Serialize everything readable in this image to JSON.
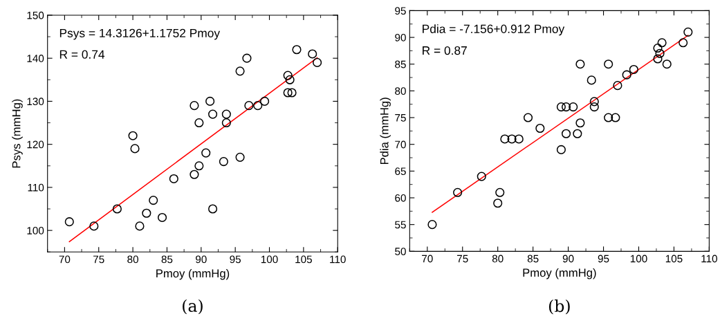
{
  "chart_data": [
    {
      "type": "scatter",
      "xlabel": "Pmoy (mmHg)",
      "ylabel": "Psys (mmHg)",
      "annotations": [
        "Psys = 14.3126+1.1752 Pmoy",
        "R = 0.74",
        "(a)"
      ],
      "xlim": [
        67.5,
        110
      ],
      "ylim": [
        95,
        150
      ],
      "xticks": [
        70,
        75,
        80,
        85,
        90,
        95,
        100,
        105,
        110
      ],
      "yticks": [
        100,
        110,
        120,
        130,
        140,
        150
      ],
      "grid": false,
      "legend": false,
      "marker": "circle",
      "series": [
        {
          "color": "#000000",
          "x": [
            70.7,
            74.3,
            77.7,
            80,
            80.3,
            81,
            82,
            83,
            84.3,
            86,
            89,
            89,
            89.7,
            89.7,
            90.7,
            91.3,
            91.7,
            91.7,
            93.3,
            93.7,
            93.7,
            95.7,
            95.7,
            96.7,
            97,
            98.3,
            99.3,
            102.7,
            102.7,
            103,
            103.3,
            104,
            106.3,
            107
          ],
          "values": [
            102,
            101,
            105,
            122,
            119,
            101,
            104,
            107,
            103,
            112,
            129,
            113,
            125,
            115,
            118,
            130,
            127,
            105,
            116,
            127,
            125,
            137,
            117,
            140,
            129,
            129,
            130,
            136,
            132,
            135,
            132,
            142,
            141,
            139
          ]
        },
        {
          "type": "line",
          "color": "#ff0000",
          "marker": "none",
          "x": [
            70.7,
            107
          ],
          "values": [
            97.4,
            140.1
          ]
        }
      ]
    },
    {
      "type": "scatter",
      "xlabel": "Pmoy (mmHg)",
      "ylabel": "Pdia (mmHg)",
      "annotations": [
        "Pdia = -7.156+0.912 Pmoy",
        "R = 0.87",
        "(b)"
      ],
      "xlim": [
        67.5,
        110
      ],
      "ylim": [
        50,
        95
      ],
      "xticks": [
        70,
        75,
        80,
        85,
        90,
        95,
        100,
        105,
        110
      ],
      "yticks": [
        50,
        55,
        60,
        65,
        70,
        75,
        80,
        85,
        90,
        95
      ],
      "grid": false,
      "legend": false,
      "marker": "circle",
      "series": [
        {
          "color": "#000000",
          "x": [
            70.7,
            74.3,
            77.7,
            80,
            80.3,
            81,
            82,
            83,
            84.3,
            86,
            89,
            89,
            89.7,
            89.7,
            90.7,
            91.3,
            91.7,
            91.7,
            93.3,
            93.7,
            93.7,
            95.7,
            95.7,
            96.7,
            97,
            98.3,
            99.3,
            102.7,
            102.7,
            103,
            103.3,
            104,
            106.3,
            107
          ],
          "values": [
            55,
            61,
            64,
            59,
            61,
            71,
            71,
            71,
            75,
            73,
            77,
            69,
            77,
            72,
            77,
            72,
            85,
            74,
            82,
            78,
            77,
            85,
            75,
            75,
            81,
            83,
            84,
            88,
            86,
            87,
            89,
            85,
            89,
            91
          ]
        },
        {
          "type": "line",
          "color": "#ff0000",
          "marker": "none",
          "x": [
            70.7,
            107
          ],
          "values": [
            57.3,
            90.4
          ]
        }
      ]
    }
  ]
}
